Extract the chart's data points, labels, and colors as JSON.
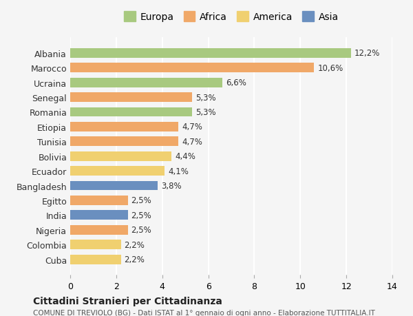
{
  "categories": [
    "Albania",
    "Marocco",
    "Ucraina",
    "Senegal",
    "Romania",
    "Etiopia",
    "Tunisia",
    "Bolivia",
    "Ecuador",
    "Bangladesh",
    "Egitto",
    "India",
    "Nigeria",
    "Colombia",
    "Cuba"
  ],
  "values": [
    12.2,
    10.6,
    6.6,
    5.3,
    5.3,
    4.7,
    4.7,
    4.4,
    4.1,
    3.8,
    2.5,
    2.5,
    2.5,
    2.2,
    2.2
  ],
  "labels": [
    "12,2%",
    "10,6%",
    "6,6%",
    "5,3%",
    "5,3%",
    "4,7%",
    "4,7%",
    "4,4%",
    "4,1%",
    "3,8%",
    "2,5%",
    "2,5%",
    "2,5%",
    "2,2%",
    "2,2%"
  ],
  "continents": [
    "Europa",
    "Africa",
    "Europa",
    "Africa",
    "Europa",
    "Africa",
    "Africa",
    "America",
    "America",
    "Asia",
    "Africa",
    "Asia",
    "Africa",
    "America",
    "America"
  ],
  "colors": {
    "Europa": "#a8c97f",
    "Africa": "#f0a868",
    "America": "#f0d070",
    "Asia": "#6a8fbf"
  },
  "legend_order": [
    "Europa",
    "Africa",
    "America",
    "Asia"
  ],
  "xlim": [
    0,
    14
  ],
  "xticks": [
    0,
    2,
    4,
    6,
    8,
    10,
    12,
    14
  ],
  "title": "Cittadini Stranieri per Cittadinanza",
  "subtitle": "COMUNE DI TREVIOLO (BG) - Dati ISTAT al 1° gennaio di ogni anno - Elaborazione TUTTITALIA.IT",
  "background_color": "#f5f5f5",
  "grid_color": "#ffffff",
  "bar_height": 0.65
}
